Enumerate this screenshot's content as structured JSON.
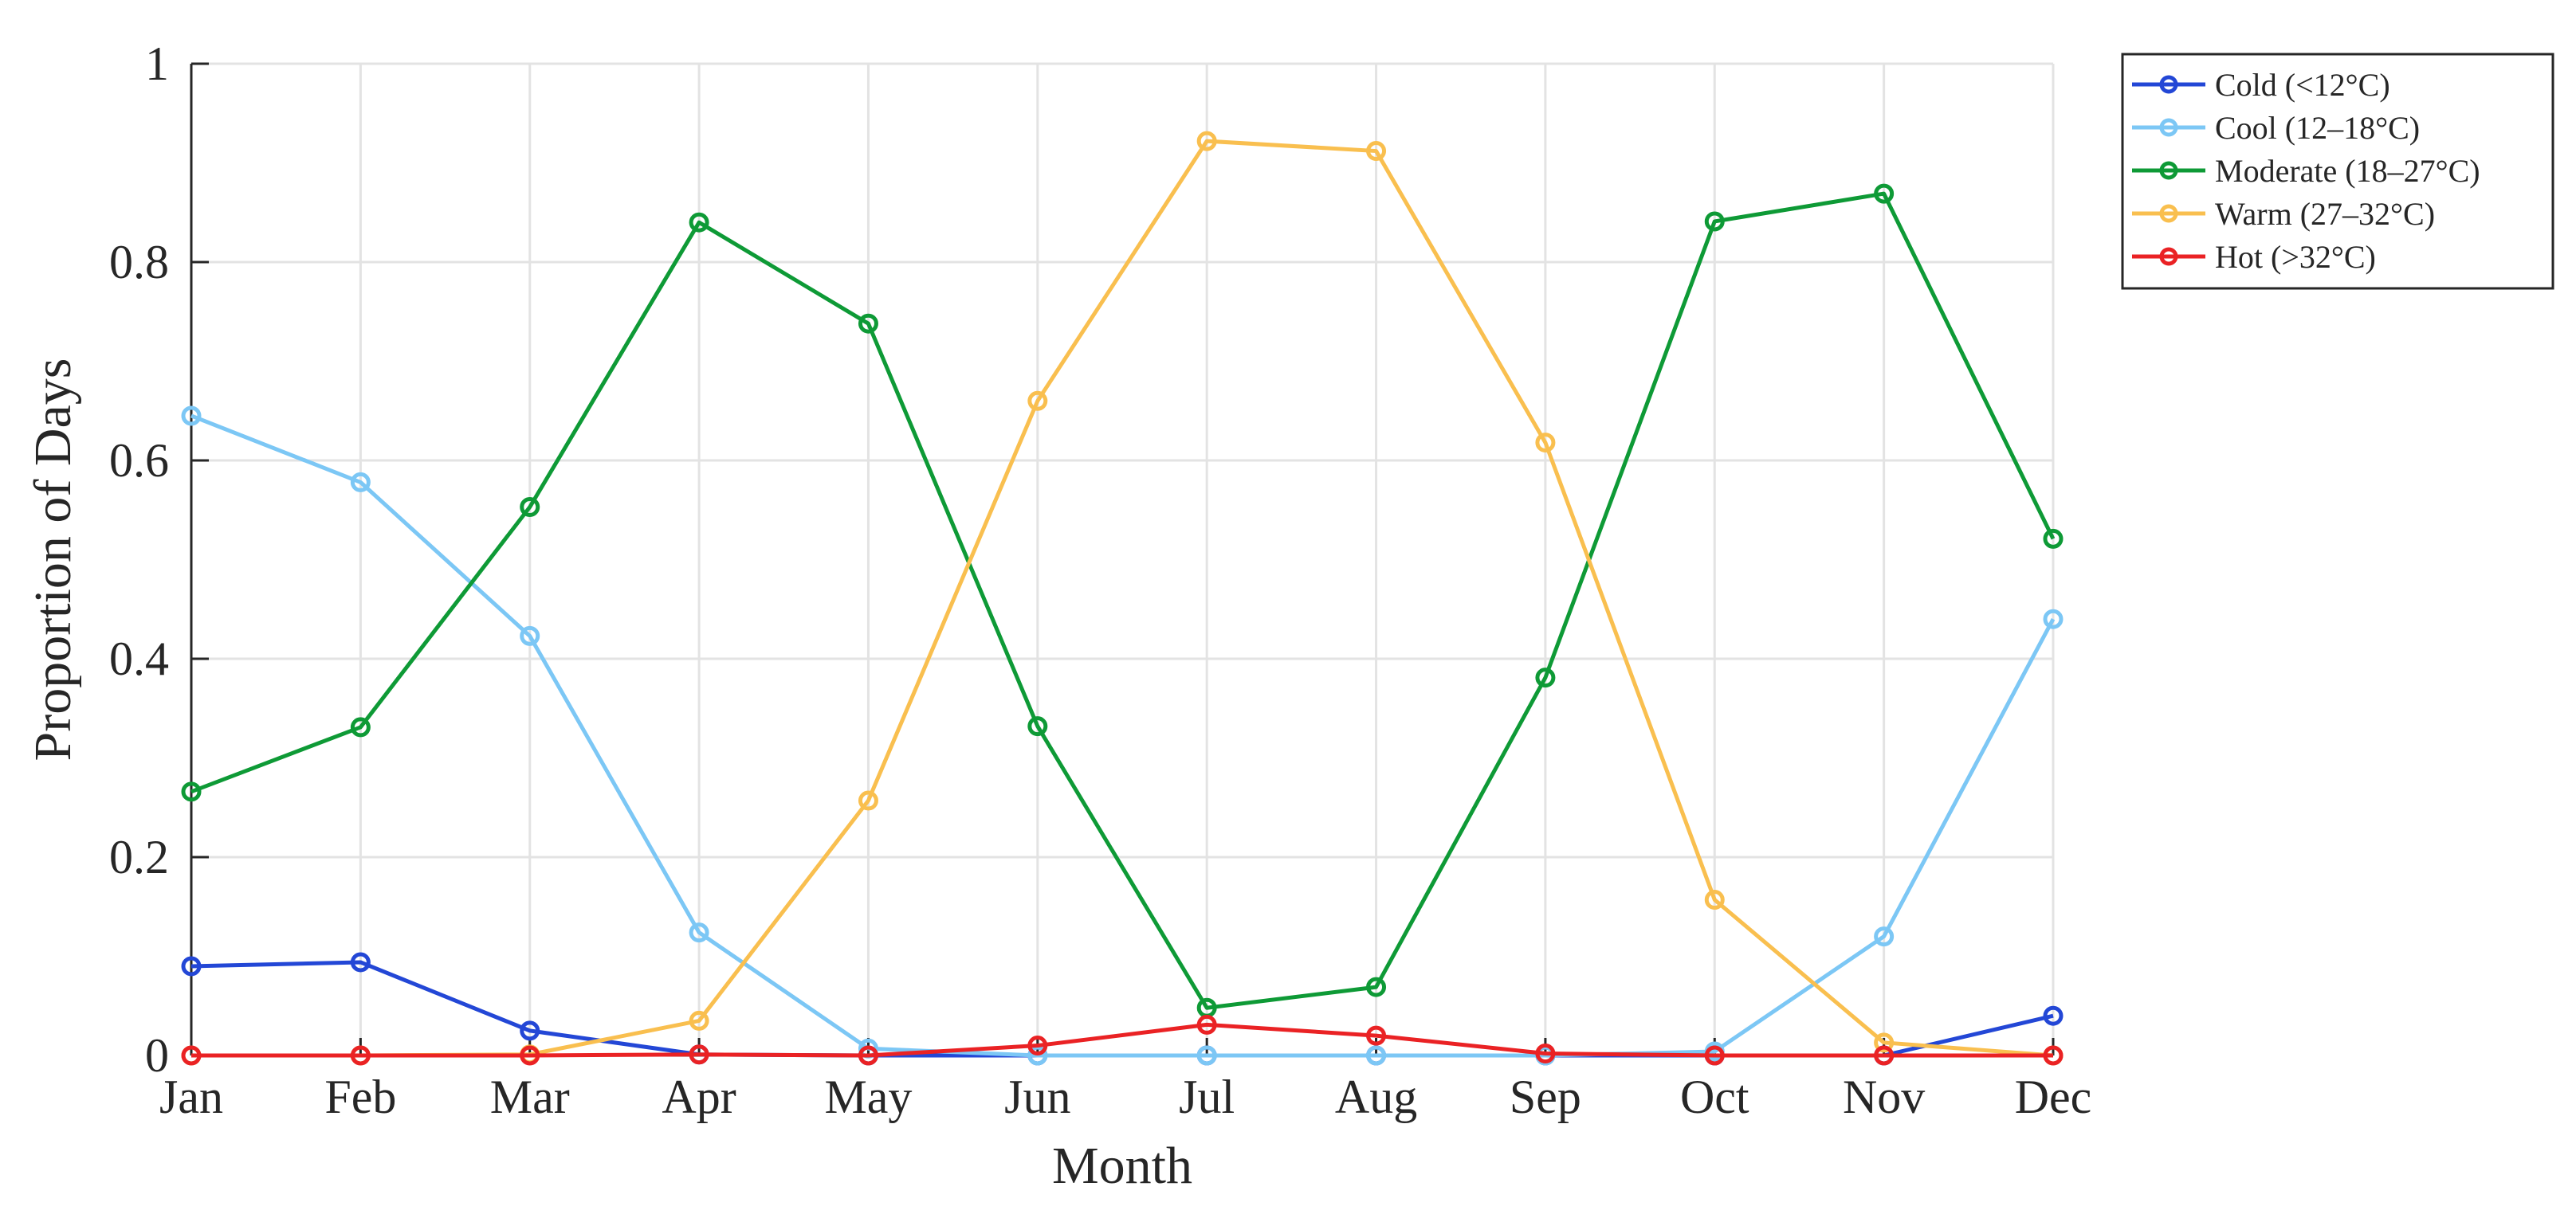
{
  "chart_data": {
    "type": "line",
    "title": "",
    "xlabel": "Month",
    "ylabel": "Proportion of Days",
    "categories": [
      "Jan",
      "Feb",
      "Mar",
      "Apr",
      "May",
      "Jun",
      "Jul",
      "Aug",
      "Sep",
      "Oct",
      "Nov",
      "Dec"
    ],
    "ylim": [
      0,
      1
    ],
    "yticks": [
      0,
      0.2,
      0.4,
      0.6,
      0.8,
      1
    ],
    "ytick_labels": [
      "0",
      "0.2",
      "0.4",
      "0.6",
      "0.8",
      "1"
    ],
    "grid": true,
    "legend_position": "outside top-right",
    "marker": "circle",
    "series": [
      {
        "name": "Cold (<12°C)",
        "color": "#2347d6",
        "values": [
          0.09,
          0.094,
          0.025,
          0.001,
          0.0,
          0.0,
          0.0,
          0.0,
          0.0,
          0.0,
          0.0,
          0.04
        ]
      },
      {
        "name": "Cool (12–18°C)",
        "color": "#7cc7f5",
        "values": [
          0.645,
          0.578,
          0.423,
          0.124,
          0.007,
          0.0,
          0.0,
          0.0,
          0.0,
          0.004,
          0.12,
          0.44
        ]
      },
      {
        "name": "Moderate (18–27°C)",
        "color": "#0e9a36",
        "values": [
          0.266,
          0.331,
          0.553,
          0.84,
          0.738,
          0.332,
          0.048,
          0.069,
          0.381,
          0.841,
          0.869,
          0.521
        ]
      },
      {
        "name": "Warm (27–32°C)",
        "color": "#f9bf4f",
        "values": [
          0.0,
          0.0,
          0.001,
          0.035,
          0.257,
          0.66,
          0.922,
          0.912,
          0.618,
          0.157,
          0.013,
          0.0
        ]
      },
      {
        "name": "Hot (>32°C)",
        "color": "#ea2224",
        "values": [
          0.0,
          0.0,
          0.0,
          0.001,
          0.0,
          0.01,
          0.031,
          0.02,
          0.002,
          0.0,
          0.0,
          0.0
        ]
      }
    ]
  }
}
